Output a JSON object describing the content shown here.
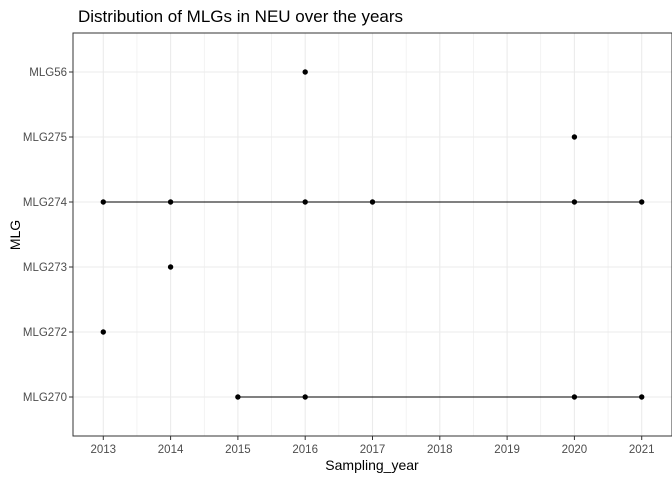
{
  "chart_data": {
    "type": "scatter",
    "title": "Distribution of MLGs in NEU over the years",
    "xlabel": "Sampling_year",
    "ylabel": "MLG",
    "x_ticks": [
      2013,
      2014,
      2015,
      2016,
      2017,
      2018,
      2019,
      2020,
      2021
    ],
    "xlim": [
      2012.55,
      2021.45
    ],
    "categories": [
      "MLG270",
      "MLG272",
      "MLG273",
      "MLG274",
      "MLG275",
      "MLG56"
    ],
    "grid": true,
    "series": [
      {
        "mlg": "MLG56",
        "years": [
          2016
        ]
      },
      {
        "mlg": "MLG275",
        "years": [
          2020
        ]
      },
      {
        "mlg": "MLG274",
        "years": [
          2013,
          2014,
          2016,
          2017,
          2020,
          2021
        ]
      },
      {
        "mlg": "MLG273",
        "years": [
          2014
        ]
      },
      {
        "mlg": "MLG272",
        "years": [
          2013
        ]
      },
      {
        "mlg": "MLG270",
        "years": [
          2015,
          2016,
          2020,
          2021
        ]
      }
    ],
    "colors": {
      "point": "#000000",
      "line": "#000000",
      "grid": "#ebebeb",
      "panel_border": "#333333"
    }
  }
}
